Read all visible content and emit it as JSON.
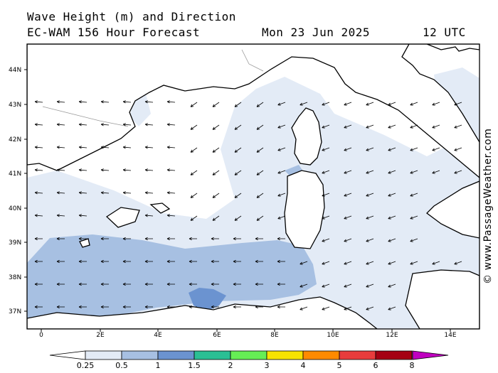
{
  "header": {
    "title": "Wave Height (m) and Direction",
    "model_line": "EC-WAM 156 Hour Forecast",
    "date": "Mon 23 Jun 2025",
    "time": "12 UTC"
  },
  "axes": {
    "latitudes": [
      "44N",
      "43N",
      "42N",
      "41N",
      "40N",
      "39N",
      "38N",
      "37N"
    ],
    "longitudes": [
      "0",
      "2E",
      "4E",
      "6E",
      "8E",
      "10E",
      "12E",
      "14E"
    ]
  },
  "legend": {
    "labels": [
      "0.25",
      "0.5",
      "1",
      "1.5",
      "2",
      "3",
      "4",
      "5",
      "6",
      "8"
    ],
    "colors": [
      "#ffffff",
      "#e3ebf6",
      "#a7c0e2",
      "#6b93d0",
      "#2bbf94",
      "#66ee55",
      "#f7e300",
      "#ff8a00",
      "#e83c3c",
      "#a50012",
      "#c000c0"
    ]
  },
  "credit": "© www.PassageWeather.com"
}
